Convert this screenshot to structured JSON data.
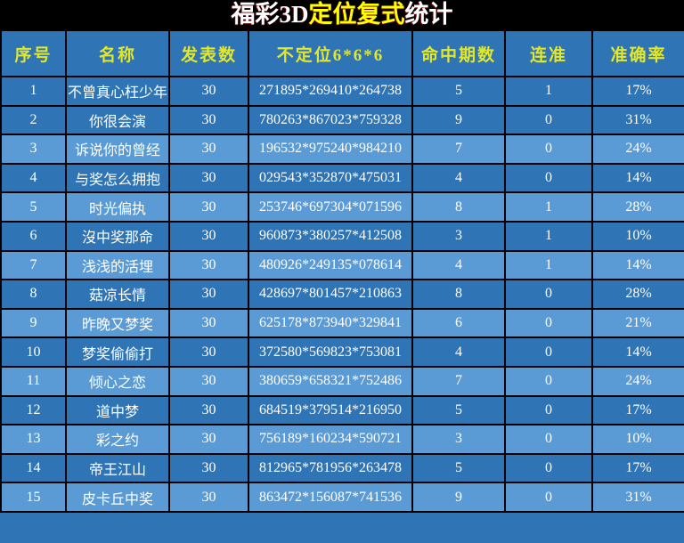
{
  "title": {
    "part1": "福彩3D",
    "part2": "定位复式",
    "part3": "统计"
  },
  "colors": {
    "title_bg": "#000000",
    "title_text": "#ffffff",
    "title_accent": "#ffff00",
    "header_bg": "#2f74b5",
    "header_text": "#e2e72c",
    "row_dark": "#2f74b5",
    "row_light": "#5b9bd5",
    "row_text": "#ffffff",
    "grid_border": "#000000"
  },
  "table": {
    "headers": [
      "序号",
      "名称",
      "发表数",
      "不定位6*6*6",
      "命中期数",
      "连准",
      "准确率"
    ],
    "rows": [
      {
        "index": "1",
        "name": "不曾真心枉少年",
        "published": "30",
        "numbers": "271895*269410*264738",
        "hits": "5",
        "streak": "1",
        "accuracy": "17%"
      },
      {
        "index": "2",
        "name": "你很会演",
        "published": "30",
        "numbers": "780263*867023*759328",
        "hits": "9",
        "streak": "0",
        "accuracy": "31%"
      },
      {
        "index": "3",
        "name": "诉说你的曾经",
        "published": "30",
        "numbers": "196532*975240*984210",
        "hits": "7",
        "streak": "0",
        "accuracy": "24%"
      },
      {
        "index": "4",
        "name": "与奖怎么拥抱",
        "published": "30",
        "numbers": "029543*352870*475031",
        "hits": "4",
        "streak": "0",
        "accuracy": "14%"
      },
      {
        "index": "5",
        "name": "时光偏执",
        "published": "30",
        "numbers": "253746*697304*071596",
        "hits": "8",
        "streak": "1",
        "accuracy": "28%"
      },
      {
        "index": "6",
        "name": "沒中奖那命",
        "published": "30",
        "numbers": "960873*380257*412508",
        "hits": "3",
        "streak": "1",
        "accuracy": "10%"
      },
      {
        "index": "7",
        "name": "浅浅的活埋",
        "published": "30",
        "numbers": "480926*249135*078614",
        "hits": "4",
        "streak": "1",
        "accuracy": "14%"
      },
      {
        "index": "8",
        "name": "菇凉长情",
        "published": "30",
        "numbers": "428697*801457*210863",
        "hits": "8",
        "streak": "0",
        "accuracy": "28%"
      },
      {
        "index": "9",
        "name": "昨晚又梦奖",
        "published": "30",
        "numbers": "625178*873940*329841",
        "hits": "6",
        "streak": "0",
        "accuracy": "21%"
      },
      {
        "index": "10",
        "name": "梦奖偷偷打",
        "published": "30",
        "numbers": "372580*569823*753081",
        "hits": "4",
        "streak": "0",
        "accuracy": "14%"
      },
      {
        "index": "11",
        "name": "倾心之恋",
        "published": "30",
        "numbers": "380659*658321*752486",
        "hits": "7",
        "streak": "0",
        "accuracy": "24%"
      },
      {
        "index": "12",
        "name": "道中梦",
        "published": "30",
        "numbers": "684519*379514*216950",
        "hits": "5",
        "streak": "0",
        "accuracy": "17%"
      },
      {
        "index": "13",
        "name": "彩之约",
        "published": "30",
        "numbers": "756189*160234*590721",
        "hits": "3",
        "streak": "0",
        "accuracy": "10%"
      },
      {
        "index": "14",
        "name": "帝王江山",
        "published": "30",
        "numbers": "812965*781956*263478",
        "hits": "5",
        "streak": "0",
        "accuracy": "17%"
      },
      {
        "index": "15",
        "name": "皮卡丘中奖",
        "published": "30",
        "numbers": "863472*156087*741536",
        "hits": "9",
        "streak": "0",
        "accuracy": "31%"
      }
    ]
  }
}
